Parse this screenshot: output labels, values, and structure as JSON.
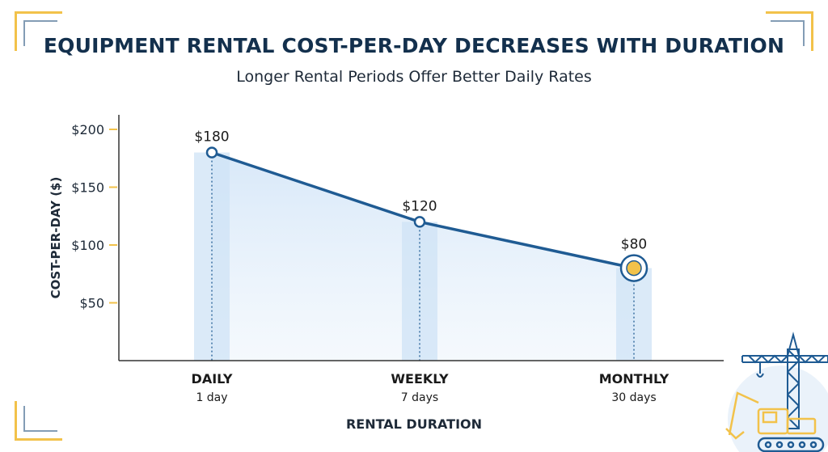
{
  "header": {
    "title": "EQUIPMENT RENTAL COST-PER-DAY DECREASES WITH DURATION",
    "subtitle": "Longer Rental Periods Offer Better Daily Rates"
  },
  "colors": {
    "line": "#1f5b93",
    "band": "#cfe3f6",
    "area": "#e4effa",
    "axis": "#333333",
    "tick": "#f2c24a",
    "highlight": "#f2c24a",
    "text": "#1e2a38"
  },
  "chart_data": {
    "type": "line",
    "title": "EQUIPMENT RENTAL COST-PER-DAY DECREASES WITH DURATION",
    "subtitle": "Longer Rental Periods Offer Better Daily Rates",
    "xlabel": "RENTAL DURATION",
    "ylabel": "COST-PER-DAY ($)",
    "categories": [
      "DAILY",
      "WEEKLY",
      "MONTHLY"
    ],
    "category_sublabels": [
      "1 day",
      "7 days",
      "30 days"
    ],
    "values": [
      180,
      120,
      80
    ],
    "data_labels": [
      "$180",
      "$120",
      "$80"
    ],
    "ylim": [
      0,
      200
    ],
    "yticks": [
      50,
      100,
      150,
      200
    ],
    "ytick_labels": [
      "$50",
      "$100",
      "$150",
      "$200"
    ],
    "highlighted_category": "MONTHLY",
    "grid": false,
    "fill_under_line": true
  },
  "decor": {
    "illustration_icon": "construction-crane-excavator-icon"
  }
}
